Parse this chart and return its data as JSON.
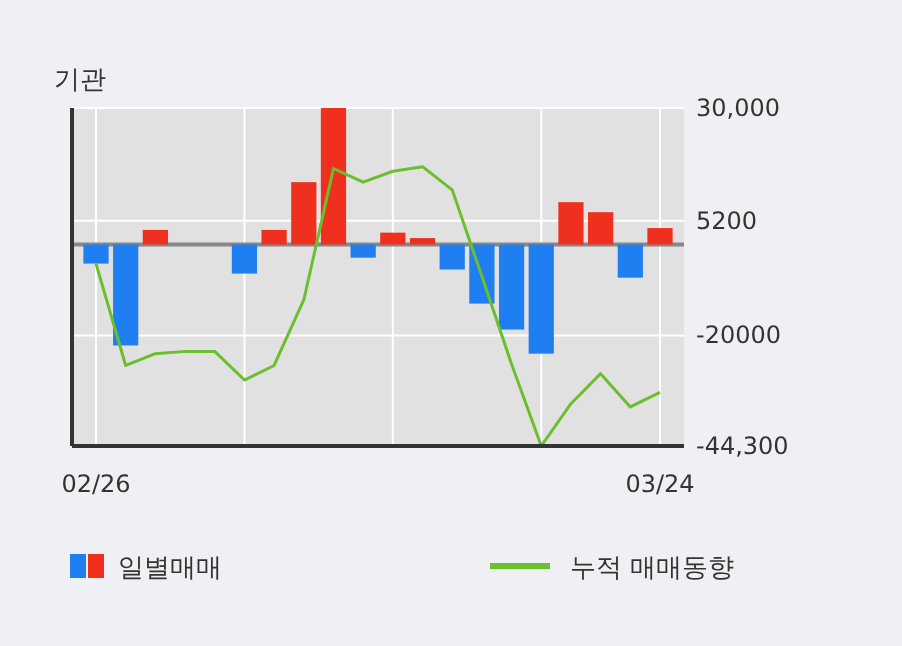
{
  "chart_data": {
    "type": "bar",
    "title": "기관",
    "categories": [
      "02/26",
      null,
      null,
      null,
      null,
      null,
      null,
      null,
      null,
      null,
      null,
      null,
      null,
      null,
      null,
      null,
      null,
      null,
      null,
      "03/24"
    ],
    "series": [
      {
        "name": "일별매매",
        "colors": [
          "#1f7ef0",
          "#1f7ef0",
          "#f0301e",
          "#f0301e",
          "#f0301e",
          "#1f7ef0",
          "#f0301e",
          "#f0301e",
          "#f0301e",
          "#1f7ef0",
          "#f0301e",
          "#f0301e",
          "#1f7ef0",
          "#1f7ef0",
          "#1f7ef0",
          "#1f7ef0",
          "#f0301e",
          "#f0301e",
          "#1f7ef0",
          "#f0301e"
        ],
        "values": [
          -4200,
          -22200,
          3200,
          0,
          0,
          -6400,
          3200,
          13700,
          30000,
          -2900,
          2600,
          1400,
          -5500,
          -13000,
          -18700,
          -24000,
          9300,
          7100,
          -7300,
          3600
        ]
      },
      {
        "name": "누적 매매동향",
        "type": "line",
        "color": "#6cbf2c",
        "values": [
          -4200,
          -26600,
          -24000,
          -23500,
          -23500,
          -29800,
          -26600,
          -12200,
          16700,
          13700,
          16100,
          17100,
          12000,
          -7000,
          -26300,
          -44300,
          -35000,
          -28400,
          -35700,
          -32500
        ]
      }
    ],
    "ylim": [
      -44300,
      30000
    ],
    "yticks": [
      {
        "value": 30000,
        "label": "30,000"
      },
      5200,
      -20000,
      {
        "value": -44300,
        "label": "-44,300"
      }
    ],
    "ref_lines": [
      {
        "axis": "y",
        "value": 0,
        "color": "#888888"
      }
    ],
    "grid": true,
    "legend": "bottom"
  }
}
